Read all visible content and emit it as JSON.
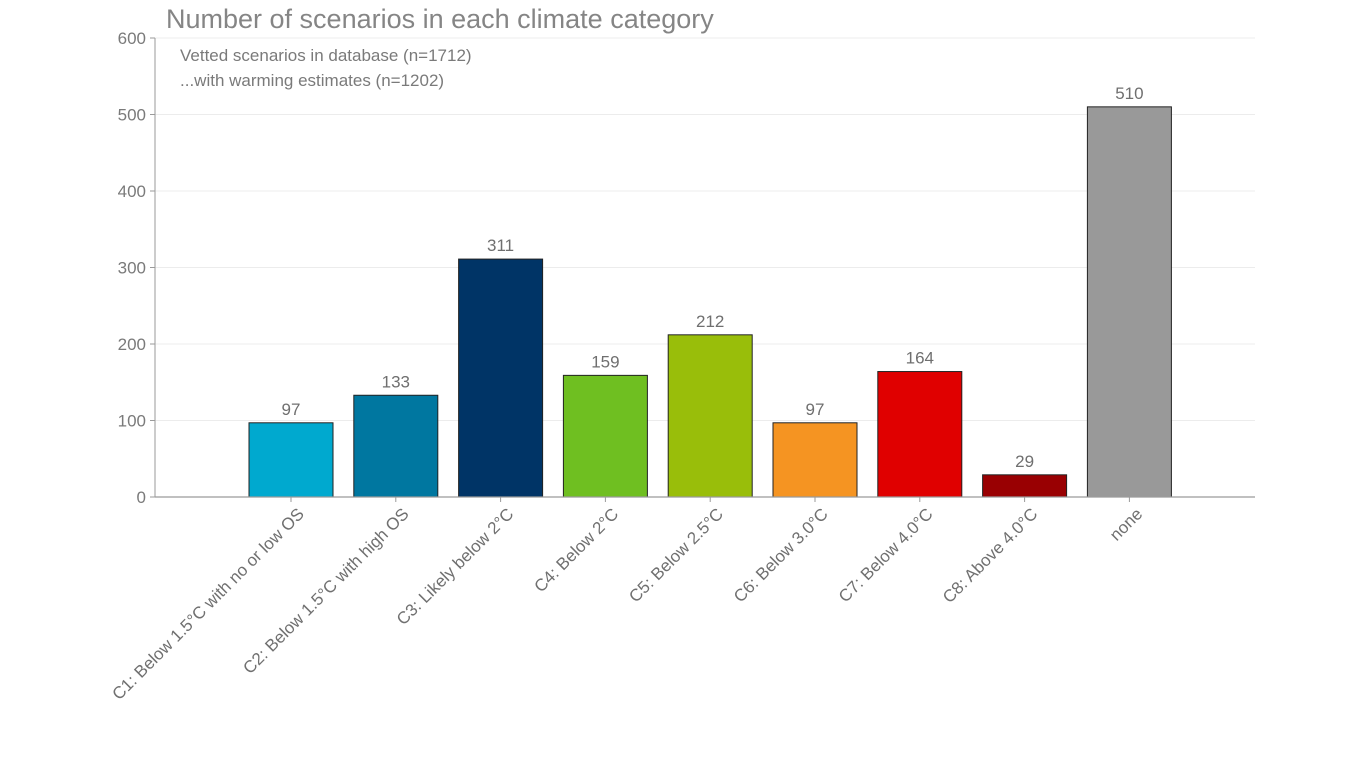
{
  "chart_data": {
    "type": "bar",
    "title": "Number of scenarios in each climate category",
    "subtitle": [
      "Vetted scenarios in database (n=1712)",
      "...with warming estimates (n=1202)"
    ],
    "xlabel": "",
    "ylabel": "",
    "ylim": [
      0,
      600
    ],
    "yticks": [
      0,
      100,
      200,
      300,
      400,
      500,
      600
    ],
    "grid": true,
    "legend": "none",
    "categories": [
      "C1: Below 1.5°C with no or low OS",
      "C2: Below 1.5°C with high OS",
      "C3: Likely below 2°C",
      "C4: Below 2°C",
      "C5: Below 2.5°C",
      "C6: Below 3.0°C",
      "C7: Below 4.0°C",
      "C8: Above 4.0°C",
      "none"
    ],
    "values": [
      97,
      133,
      311,
      159,
      212,
      97,
      164,
      29,
      510
    ],
    "colors": [
      "#00A9CF",
      "#0077A0",
      "#003466",
      "#6FBF21",
      "#99BE0A",
      "#F59422",
      "#E00000",
      "#990002",
      "#999999"
    ]
  }
}
